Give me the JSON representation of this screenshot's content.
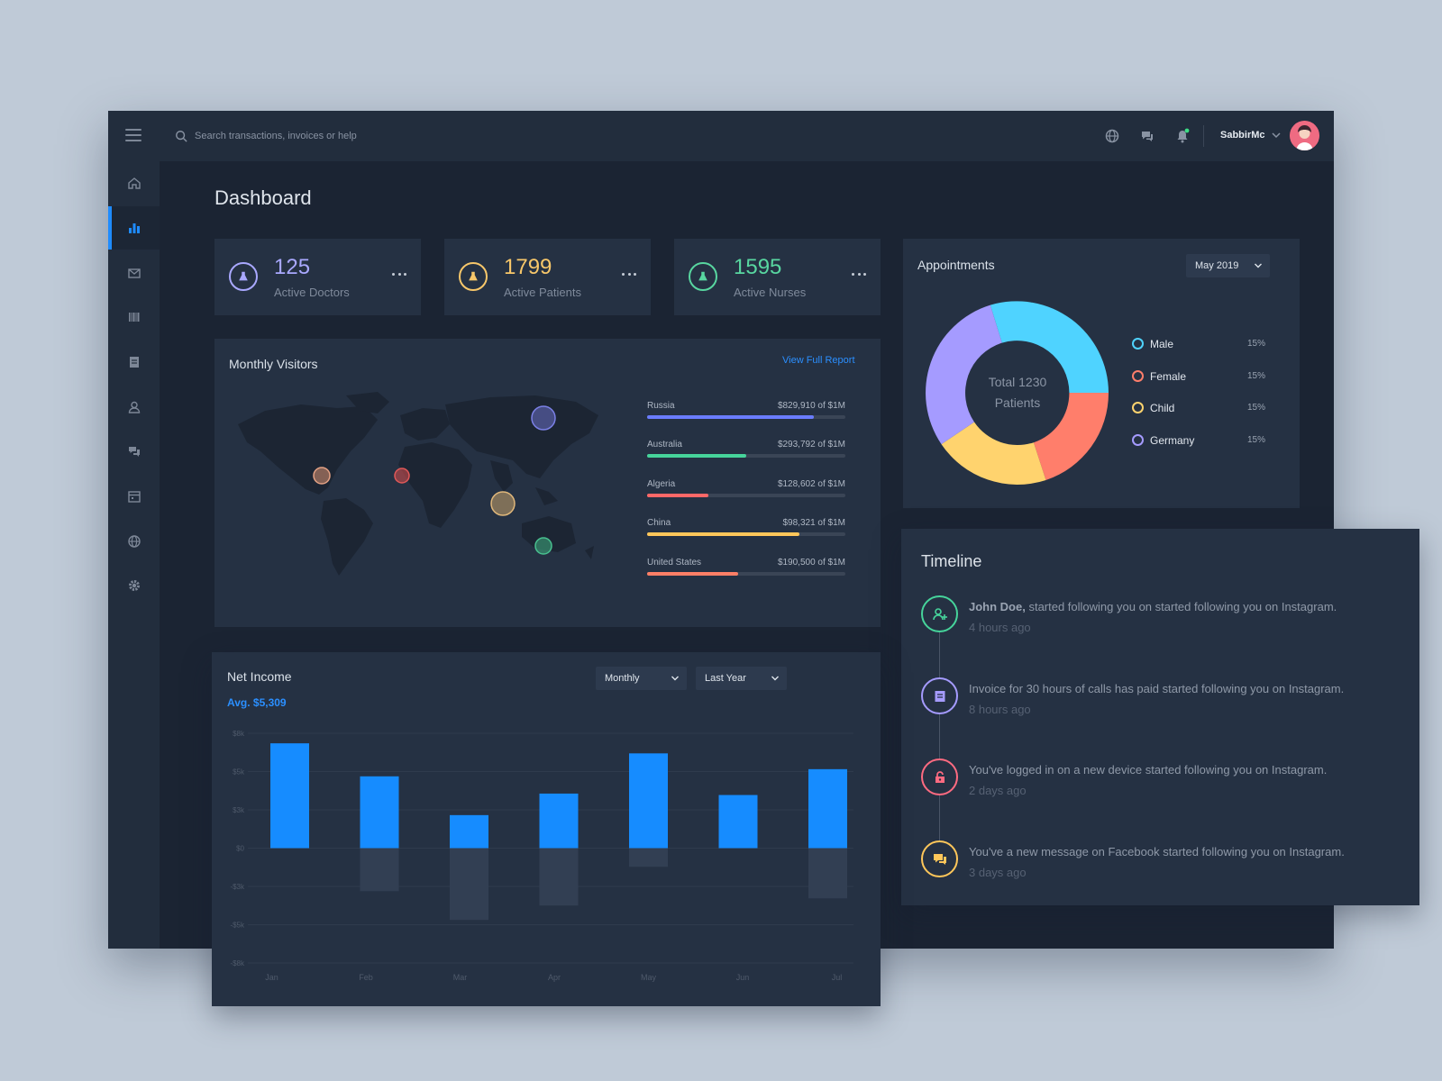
{
  "topbar": {
    "search_placeholder": "Search transactions, invoices or help",
    "username": "SabbirMc"
  },
  "page": {
    "title": "Dashboard"
  },
  "stats": [
    {
      "value": "125",
      "label": "Active Doctors",
      "color": "#a9a8ff"
    },
    {
      "value": "1799",
      "label": "Active Patients",
      "color": "#f7c76a"
    },
    {
      "value": "1595",
      "label": "Active Nurses",
      "color": "#58d6a0"
    }
  ],
  "monthly_visitors": {
    "title": "Monthly Visitors",
    "link": "View Full Report",
    "countries": [
      {
        "name": "Russia",
        "amount": "$829,910 of $1M",
        "fraction": 0.84,
        "color": "#6a7cff"
      },
      {
        "name": "Australia",
        "amount": "$293,792 of $1M",
        "fraction": 0.5,
        "color": "#46d49b"
      },
      {
        "name": "Algeria",
        "amount": "$128,602 of $1M",
        "fraction": 0.31,
        "color": "#ff6868"
      },
      {
        "name": "China",
        "amount": "$98,321 of $1M",
        "fraction": 0.77,
        "color": "#ffc75a"
      },
      {
        "name": "United States",
        "amount": "$190,500 of $1M",
        "fraction": 0.46,
        "color": "#ff7f66"
      }
    ]
  },
  "appointments": {
    "title": "Appointments",
    "period": "May 2019",
    "center_line1": "Total 1230",
    "center_line2": "Patients",
    "legend": [
      {
        "name": "Male",
        "pct": "15%",
        "color": "#4fd3ff"
      },
      {
        "name": "Female",
        "pct": "15%",
        "color": "#ff7e6b"
      },
      {
        "name": "Child",
        "pct": "15%",
        "color": "#ffd36e"
      },
      {
        "name": "Germany",
        "pct": "15%",
        "color": "#a59bff"
      }
    ]
  },
  "net_income": {
    "title": "Net Income",
    "avg": "Avg. $5,309",
    "filter_period": "Monthly",
    "filter_range": "Last Year"
  },
  "chart_data": {
    "type": "bar",
    "categories": [
      "Jan",
      "Feb",
      "Mar",
      "Apr",
      "May",
      "Jun",
      "Jul"
    ],
    "yticks": [
      "$8k",
      "$5k",
      "$3k",
      "$0",
      "-$3k",
      "-$5k",
      "-$8k"
    ],
    "ylim": [
      -8,
      8
    ],
    "series": [
      {
        "values": [
          7.3,
          5.0,
          2.3,
          3.8,
          6.6,
          3.7,
          5.5
        ],
        "color": "#168cff"
      },
      {
        "values": [
          0,
          -3.0,
          -5.0,
          -4.0,
          -1.3,
          0,
          -3.5
        ],
        "color": "#323f53"
      }
    ],
    "grid": true
  },
  "timeline": {
    "title": "Timeline",
    "items": [
      {
        "bold": "John Doe,",
        "text": " started following you on started following you on Instagram.",
        "time": "4 hours ago",
        "color": "#46d49b"
      },
      {
        "bold": "",
        "text": "Invoice for 30 hours of calls has paid started following you on Instagram.",
        "time": "8 hours ago",
        "color": "#a59bff"
      },
      {
        "bold": "",
        "text": "You've logged in on a new device started following you on Instagram.",
        "time": "2 days ago",
        "color": "#ff6b81"
      },
      {
        "bold": "",
        "text": "You've a new message on Facebook started following you on Instagram.",
        "time": "3 days ago",
        "color": "#ffc75a"
      }
    ]
  }
}
